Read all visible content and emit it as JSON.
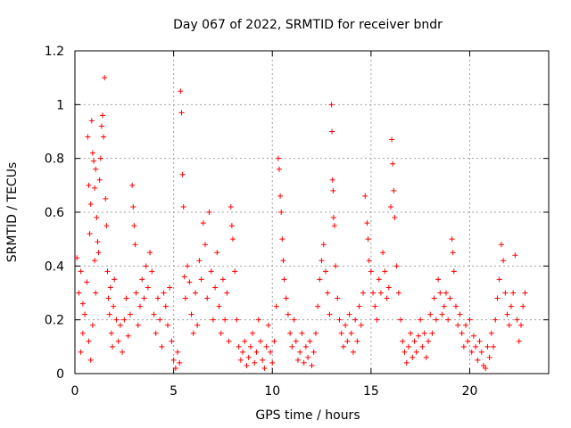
{
  "chart_data": {
    "type": "scatter",
    "title": "Day 067 of 2022, SRMTID for receiver bndr",
    "xlabel": "GPS time / hours",
    "ylabel": "SRMTID / TECUs",
    "xlim": [
      0,
      24
    ],
    "ylim": [
      0,
      1.2
    ],
    "xticks": [
      0,
      5,
      10,
      15,
      20
    ],
    "xtick_labels": [
      "0",
      "5",
      "10",
      "15",
      "20"
    ],
    "yticks": [
      0,
      0.2,
      0.4,
      0.6,
      0.8,
      1.0,
      1.2
    ],
    "ytick_labels": [
      "0",
      "0.2",
      "0.4",
      "0.6",
      "0.8",
      "1",
      "1.2"
    ],
    "grid": true,
    "marker": "+",
    "series": [
      {
        "name": "SRMTID",
        "color": "#ff0000",
        "points": [
          [
            0.1,
            0.43
          ],
          [
            0.2,
            0.3
          ],
          [
            0.3,
            0.08
          ],
          [
            0.4,
            0.15
          ],
          [
            0.5,
            0.22
          ],
          [
            0.6,
            0.34
          ],
          [
            0.7,
            0.12
          ],
          [
            0.8,
            0.05
          ],
          [
            0.3,
            0.38
          ],
          [
            0.4,
            0.26
          ],
          [
            0.9,
            0.18
          ],
          [
            1.0,
            0.42
          ],
          [
            1.05,
            0.3
          ],
          [
            0.65,
            0.88
          ],
          [
            0.7,
            0.7
          ],
          [
            0.75,
            0.52
          ],
          [
            0.8,
            0.63
          ],
          [
            0.85,
            0.94
          ],
          [
            0.9,
            0.82
          ],
          [
            0.95,
            0.79
          ],
          [
            1.0,
            0.69
          ],
          [
            1.05,
            0.76
          ],
          [
            1.1,
            0.58
          ],
          [
            1.15,
            0.49
          ],
          [
            1.2,
            0.45
          ],
          [
            1.25,
            0.72
          ],
          [
            1.3,
            0.8
          ],
          [
            1.35,
            0.92
          ],
          [
            1.4,
            0.96
          ],
          [
            1.45,
            0.88
          ],
          [
            1.5,
            1.1
          ],
          [
            1.55,
            0.65
          ],
          [
            1.6,
            0.55
          ],
          [
            1.65,
            0.38
          ],
          [
            1.7,
            0.28
          ],
          [
            1.75,
            0.22
          ],
          [
            1.8,
            0.32
          ],
          [
            1.85,
            0.15
          ],
          [
            1.9,
            0.1
          ],
          [
            1.95,
            0.25
          ],
          [
            2.0,
            0.35
          ],
          [
            2.1,
            0.2
          ],
          [
            2.2,
            0.12
          ],
          [
            2.3,
            0.18
          ],
          [
            2.4,
            0.08
          ],
          [
            2.5,
            0.2
          ],
          [
            2.6,
            0.28
          ],
          [
            2.7,
            0.14
          ],
          [
            2.8,
            0.22
          ],
          [
            2.9,
            0.7
          ],
          [
            2.95,
            0.62
          ],
          [
            3.0,
            0.55
          ],
          [
            3.05,
            0.48
          ],
          [
            3.1,
            0.3
          ],
          [
            3.2,
            0.18
          ],
          [
            3.3,
            0.25
          ],
          [
            3.4,
            0.35
          ],
          [
            3.5,
            0.28
          ],
          [
            3.6,
            0.4
          ],
          [
            3.7,
            0.32
          ],
          [
            3.8,
            0.45
          ],
          [
            3.9,
            0.38
          ],
          [
            4.0,
            0.22
          ],
          [
            4.1,
            0.15
          ],
          [
            4.2,
            0.28
          ],
          [
            4.3,
            0.2
          ],
          [
            4.4,
            0.1
          ],
          [
            4.5,
            0.3
          ],
          [
            4.6,
            0.25
          ],
          [
            4.7,
            0.18
          ],
          [
            4.8,
            0.32
          ],
          [
            4.9,
            0.12
          ],
          [
            5.0,
            0.05
          ],
          [
            5.1,
            0.02
          ],
          [
            5.2,
            0.08
          ],
          [
            5.3,
            0.04
          ],
          [
            5.35,
            1.05
          ],
          [
            5.4,
            0.97
          ],
          [
            5.45,
            0.74
          ],
          [
            5.5,
            0.62
          ],
          [
            5.55,
            0.36
          ],
          [
            5.6,
            0.28
          ],
          [
            5.7,
            0.4
          ],
          [
            5.8,
            0.34
          ],
          [
            5.9,
            0.22
          ],
          [
            6.0,
            0.15
          ],
          [
            6.1,
            0.3
          ],
          [
            6.2,
            0.18
          ],
          [
            6.3,
            0.42
          ],
          [
            6.4,
            0.35
          ],
          [
            6.5,
            0.56
          ],
          [
            6.6,
            0.48
          ],
          [
            6.7,
            0.28
          ],
          [
            6.8,
            0.6
          ],
          [
            6.9,
            0.38
          ],
          [
            7.0,
            0.2
          ],
          [
            7.1,
            0.32
          ],
          [
            7.2,
            0.45
          ],
          [
            7.3,
            0.25
          ],
          [
            7.4,
            0.15
          ],
          [
            7.5,
            0.35
          ],
          [
            7.6,
            0.2
          ],
          [
            7.7,
            0.3
          ],
          [
            7.8,
            0.12
          ],
          [
            7.9,
            0.62
          ],
          [
            7.95,
            0.55
          ],
          [
            8.0,
            0.5
          ],
          [
            8.1,
            0.38
          ],
          [
            8.2,
            0.2
          ],
          [
            8.3,
            0.1
          ],
          [
            8.4,
            0.05
          ],
          [
            8.5,
            0.08
          ],
          [
            8.6,
            0.12
          ],
          [
            8.7,
            0.03
          ],
          [
            8.8,
            0.06
          ],
          [
            8.9,
            0.1
          ],
          [
            9.0,
            0.15
          ],
          [
            9.1,
            0.04
          ],
          [
            9.2,
            0.08
          ],
          [
            9.3,
            0.2
          ],
          [
            9.4,
            0.12
          ],
          [
            9.5,
            0.05
          ],
          [
            9.6,
            0.02
          ],
          [
            9.7,
            0.1
          ],
          [
            9.8,
            0.18
          ],
          [
            9.9,
            0.08
          ],
          [
            10.0,
            0.04
          ],
          [
            10.1,
            0.12
          ],
          [
            10.2,
            0.25
          ],
          [
            10.3,
            0.8
          ],
          [
            10.35,
            0.76
          ],
          [
            10.4,
            0.66
          ],
          [
            10.45,
            0.6
          ],
          [
            10.5,
            0.5
          ],
          [
            10.55,
            0.42
          ],
          [
            10.6,
            0.35
          ],
          [
            10.7,
            0.28
          ],
          [
            10.8,
            0.22
          ],
          [
            10.9,
            0.15
          ],
          [
            11.0,
            0.1
          ],
          [
            11.1,
            0.2
          ],
          [
            11.2,
            0.12
          ],
          [
            11.3,
            0.05
          ],
          [
            11.4,
            0.08
          ],
          [
            11.5,
            0.15
          ],
          [
            11.6,
            0.04
          ],
          [
            11.7,
            0.1
          ],
          [
            11.8,
            0.06
          ],
          [
            11.9,
            0.12
          ],
          [
            12.0,
            0.03
          ],
          [
            12.1,
            0.08
          ],
          [
            12.2,
            0.15
          ],
          [
            12.3,
            0.25
          ],
          [
            12.4,
            0.35
          ],
          [
            12.5,
            0.42
          ],
          [
            12.6,
            0.48
          ],
          [
            12.7,
            0.38
          ],
          [
            12.8,
            0.3
          ],
          [
            12.9,
            0.22
          ],
          [
            13.0,
            1.0
          ],
          [
            13.02,
            0.9
          ],
          [
            13.05,
            0.72
          ],
          [
            13.08,
            0.68
          ],
          [
            13.1,
            0.58
          ],
          [
            13.15,
            0.55
          ],
          [
            13.2,
            0.4
          ],
          [
            13.3,
            0.28
          ],
          [
            13.4,
            0.2
          ],
          [
            13.5,
            0.15
          ],
          [
            13.6,
            0.1
          ],
          [
            13.7,
            0.18
          ],
          [
            13.8,
            0.12
          ],
          [
            13.9,
            0.22
          ],
          [
            14.0,
            0.15
          ],
          [
            14.1,
            0.08
          ],
          [
            14.2,
            0.2
          ],
          [
            14.3,
            0.12
          ],
          [
            14.4,
            0.25
          ],
          [
            14.5,
            0.18
          ],
          [
            14.6,
            0.3
          ],
          [
            14.7,
            0.66
          ],
          [
            14.8,
            0.56
          ],
          [
            14.85,
            0.5
          ],
          [
            14.9,
            0.42
          ],
          [
            15.0,
            0.38
          ],
          [
            15.1,
            0.3
          ],
          [
            15.2,
            0.25
          ],
          [
            15.3,
            0.2
          ],
          [
            15.4,
            0.35
          ],
          [
            15.5,
            0.3
          ],
          [
            15.6,
            0.45
          ],
          [
            15.7,
            0.38
          ],
          [
            15.8,
            0.28
          ],
          [
            15.9,
            0.32
          ],
          [
            16.0,
            0.62
          ],
          [
            16.05,
            0.87
          ],
          [
            16.1,
            0.78
          ],
          [
            16.15,
            0.68
          ],
          [
            16.2,
            0.58
          ],
          [
            16.3,
            0.4
          ],
          [
            16.4,
            0.3
          ],
          [
            16.5,
            0.2
          ],
          [
            16.6,
            0.12
          ],
          [
            16.7,
            0.08
          ],
          [
            16.8,
            0.04
          ],
          [
            16.9,
            0.1
          ],
          [
            17.0,
            0.15
          ],
          [
            17.1,
            0.06
          ],
          [
            17.2,
            0.12
          ],
          [
            17.3,
            0.08
          ],
          [
            17.4,
            0.14
          ],
          [
            17.5,
            0.2
          ],
          [
            17.6,
            0.1
          ],
          [
            17.7,
            0.15
          ],
          [
            17.8,
            0.06
          ],
          [
            17.9,
            0.12
          ],
          [
            18.0,
            0.22
          ],
          [
            18.1,
            0.15
          ],
          [
            18.2,
            0.28
          ],
          [
            18.3,
            0.2
          ],
          [
            18.4,
            0.35
          ],
          [
            18.5,
            0.3
          ],
          [
            18.6,
            0.22
          ],
          [
            18.7,
            0.25
          ],
          [
            18.8,
            0.3
          ],
          [
            18.9,
            0.2
          ],
          [
            19.0,
            0.28
          ],
          [
            19.1,
            0.5
          ],
          [
            19.15,
            0.45
          ],
          [
            19.2,
            0.38
          ],
          [
            19.3,
            0.25
          ],
          [
            19.4,
            0.18
          ],
          [
            19.5,
            0.22
          ],
          [
            19.6,
            0.15
          ],
          [
            19.7,
            0.1
          ],
          [
            19.8,
            0.18
          ],
          [
            19.9,
            0.12
          ],
          [
            20.0,
            0.2
          ],
          [
            20.1,
            0.08
          ],
          [
            20.2,
            0.14
          ],
          [
            20.3,
            0.1
          ],
          [
            20.4,
            0.05
          ],
          [
            20.5,
            0.12
          ],
          [
            20.6,
            0.08
          ],
          [
            20.7,
            0.03
          ],
          [
            20.8,
            0.02
          ],
          [
            20.9,
            0.1
          ],
          [
            21.0,
            0.06
          ],
          [
            21.1,
            0.15
          ],
          [
            21.2,
            0.1
          ],
          [
            21.3,
            0.2
          ],
          [
            21.4,
            0.28
          ],
          [
            21.5,
            0.35
          ],
          [
            21.6,
            0.48
          ],
          [
            21.7,
            0.42
          ],
          [
            21.8,
            0.3
          ],
          [
            21.9,
            0.22
          ],
          [
            22.0,
            0.18
          ],
          [
            22.1,
            0.25
          ],
          [
            22.2,
            0.3
          ],
          [
            22.3,
            0.44
          ],
          [
            22.4,
            0.2
          ],
          [
            22.5,
            0.12
          ],
          [
            22.6,
            0.18
          ],
          [
            22.7,
            0.25
          ],
          [
            22.8,
            0.3
          ]
        ]
      }
    ]
  }
}
